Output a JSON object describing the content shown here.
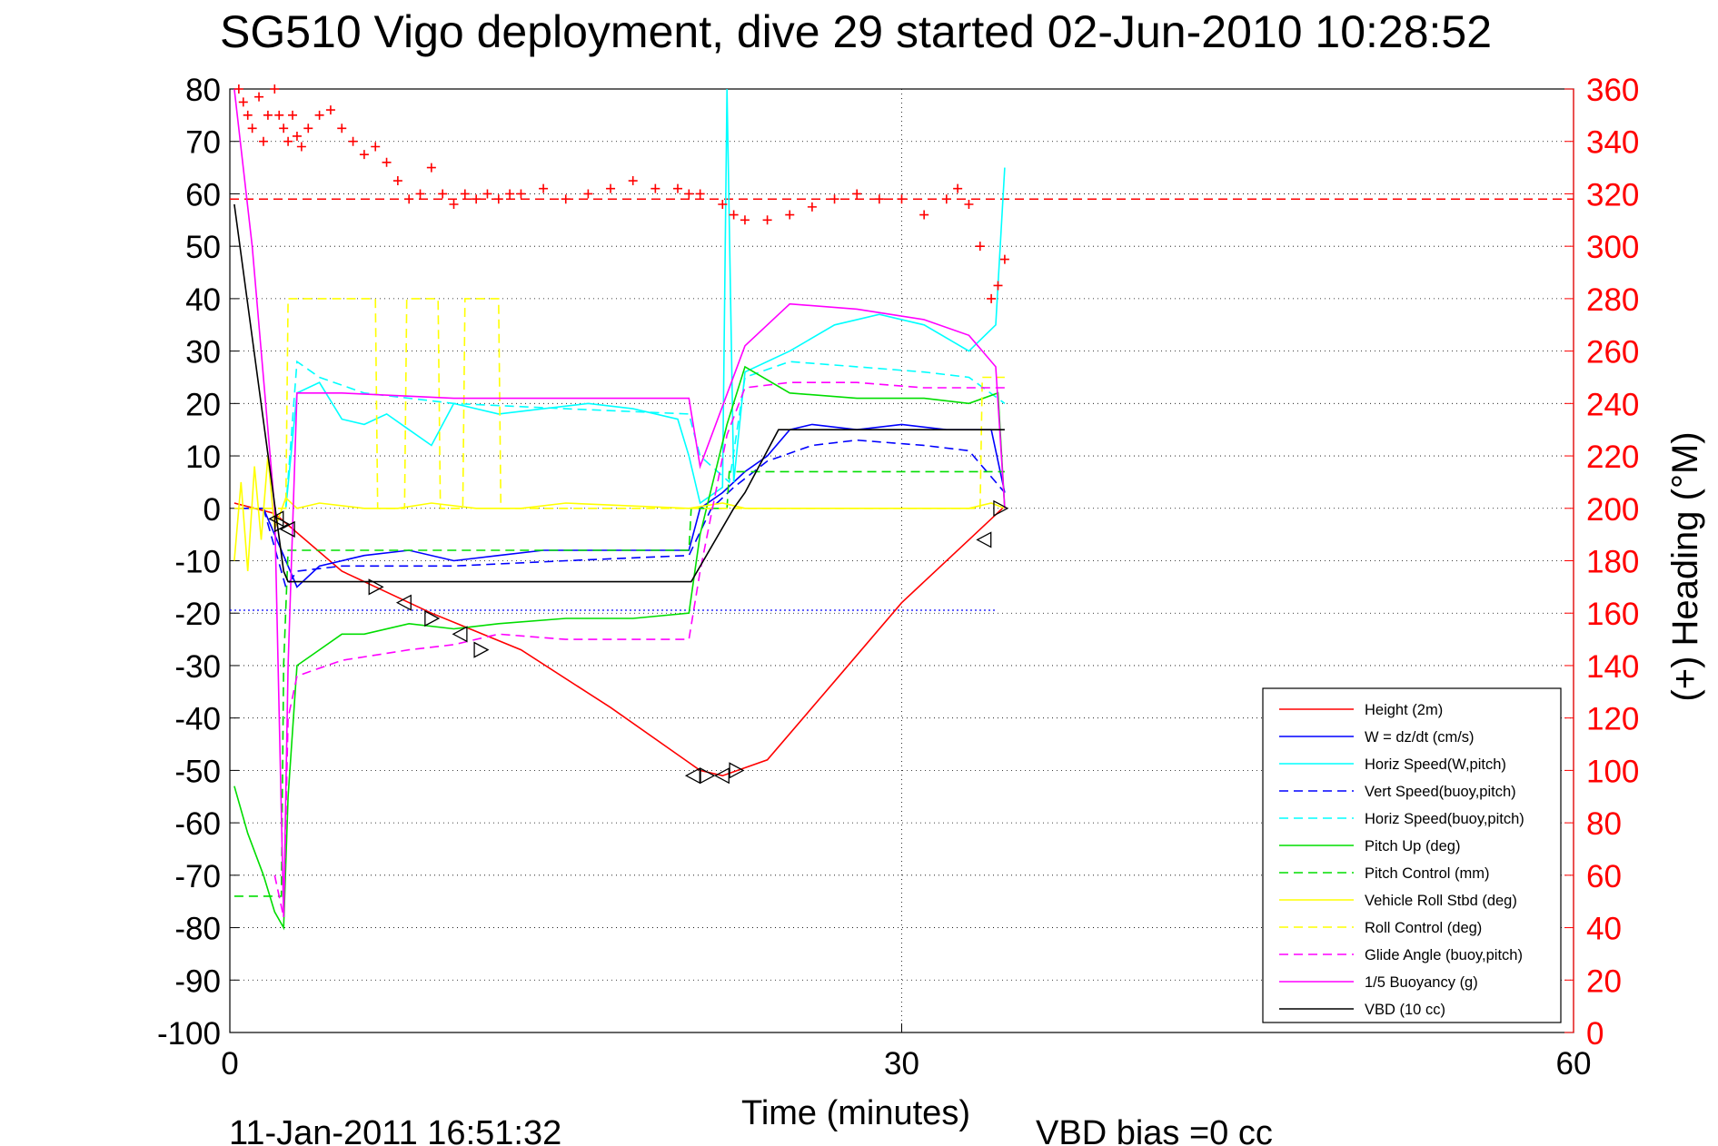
{
  "title": "SG510 Vigo deployment, dive 29 started 02-Jun-2010 10:28:52",
  "footer_date": "11-Jan-2011 16:51:32",
  "vbd_bias": "VBD bias =0 cc",
  "colors": {
    "height": "#ff0000",
    "w": "#0000ff",
    "horiz_w_pitch": "#00ffff",
    "pitch": "#00dd00",
    "roll": "#ffff00",
    "glide": "#ff00ff",
    "vbd": "#000000",
    "heading": "#ff0000",
    "grid": "#000000"
  },
  "chart_data": {
    "type": "line",
    "title": "SG510 Vigo deployment, dive 29 started 02-Jun-2010 10:28:52",
    "xlabel": "Time (minutes)",
    "ylabel": "",
    "y2label": "(+) Heading (°M)",
    "xlim": [
      0,
      60
    ],
    "ylim": [
      -100,
      80
    ],
    "y2lim": [
      0,
      360
    ],
    "xticks": [
      0,
      30,
      60
    ],
    "yticks": [
      80,
      70,
      60,
      50,
      40,
      30,
      20,
      10,
      0,
      -10,
      -20,
      -30,
      -40,
      -50,
      -60,
      -70,
      -80,
      -90,
      -100
    ],
    "y2ticks": [
      360,
      340,
      320,
      300,
      280,
      260,
      240,
      220,
      200,
      180,
      160,
      140,
      120,
      100,
      80,
      60,
      40,
      20,
      0
    ],
    "grid": true,
    "legend_position": "bottom-right",
    "series": [
      {
        "name": "Height (2m)",
        "color": "#ff0000",
        "dash": "solid",
        "x": [
          0.2,
          2,
          5,
          9,
          13,
          17,
          21,
          22,
          24,
          27,
          30,
          33,
          34.5
        ],
        "y": [
          1,
          -1,
          -12,
          -20,
          -27,
          -38,
          -50,
          -51,
          -48,
          -33,
          -18,
          -6,
          0
        ]
      },
      {
        "name": "W = dz/dt (cm/s)",
        "color": "#0000ff",
        "dash": "solid",
        "x": [
          0.2,
          1.5,
          2.5,
          3,
          4,
          6,
          8,
          10,
          12,
          14,
          16,
          18,
          20.5,
          21,
          22,
          23,
          24,
          25,
          26,
          28,
          30,
          32,
          34,
          34.6
        ],
        "y": [
          0,
          0,
          -10,
          -15,
          -11,
          -9,
          -8,
          -10,
          -9,
          -8,
          -8,
          -8,
          -8,
          0,
          3,
          7,
          10,
          15,
          16,
          15,
          16,
          15,
          15,
          3
        ]
      },
      {
        "name": "Horiz Speed(W,pitch)",
        "color": "#00ffff",
        "dash": "solid",
        "x": [
          2.5,
          3,
          4,
          5,
          6,
          7,
          8,
          9,
          10,
          12,
          14,
          16,
          18,
          20,
          20.5,
          21,
          22,
          22.2,
          22.5,
          23,
          25,
          27,
          29,
          31,
          33,
          34.2,
          34.6
        ],
        "y": [
          0,
          22,
          24,
          17,
          16,
          18,
          15,
          12,
          20,
          18,
          19,
          20,
          19,
          17,
          10,
          1,
          4,
          80,
          5,
          26,
          30,
          35,
          37,
          35,
          30,
          35,
          65
        ]
      },
      {
        "name": "Vert Speed(buoy,pitch)",
        "color": "#0000ff",
        "dash": "dash",
        "x": [
          1.5,
          2.5,
          3,
          5,
          10,
          15,
          20.5,
          21.5,
          22.5,
          24,
          26,
          28,
          31,
          33,
          34.6
        ],
        "y": [
          0,
          -15,
          -12,
          -11,
          -11,
          -10,
          -9,
          0,
          4,
          9,
          12,
          13,
          12,
          11,
          3
        ]
      },
      {
        "name": "Horiz Speed(buoy,pitch)",
        "color": "#00ffff",
        "dash": "dash",
        "x": [
          2.5,
          3,
          4,
          6,
          10,
          15,
          20.5,
          21,
          22.3,
          23,
          25,
          28,
          31,
          33,
          34.6
        ],
        "y": [
          0,
          28,
          25,
          22,
          20,
          19,
          18,
          10,
          5,
          25,
          28,
          27,
          26,
          25,
          20
        ]
      },
      {
        "name": "Pitch Up (deg)",
        "color": "#00dd00",
        "dash": "solid",
        "x": [
          0.2,
          0.8,
          1.5,
          2,
          2.4,
          2.6,
          3,
          4,
          5,
          6,
          8,
          10,
          12,
          15,
          18,
          20.5,
          21,
          22.2,
          23,
          25,
          28,
          31,
          33,
          34.3,
          34.6
        ],
        "y": [
          -53,
          -62,
          -70,
          -77,
          -80,
          -55,
          -30,
          -27,
          -24,
          -24,
          -22,
          -23,
          -22,
          -21,
          -21,
          -20,
          -5,
          16,
          27,
          22,
          21,
          21,
          20,
          22,
          0
        ]
      },
      {
        "name": "Pitch Control (mm)",
        "color": "#00dd00",
        "dash": "dash",
        "x": [
          0.2,
          2.3,
          2.4,
          2.6,
          20.5,
          20.6,
          22.2,
          22.3,
          34.6
        ],
        "y": [
          -74,
          -74,
          -30,
          -8,
          -8,
          0,
          0,
          7,
          7
        ]
      },
      {
        "name": "Vehicle Roll Stbd (deg)",
        "color": "#ffff00",
        "dash": "solid",
        "x": [
          0.2,
          0.5,
          0.8,
          1.1,
          1.4,
          1.7,
          2,
          2.5,
          3,
          4,
          6,
          7.5,
          9,
          11,
          13,
          15,
          20.5,
          22,
          23,
          33,
          34,
          34.6
        ],
        "y": [
          -10,
          5,
          -12,
          8,
          -6,
          10,
          -4,
          2,
          0,
          1,
          0,
          0,
          1,
          0,
          0,
          1,
          0,
          1,
          0,
          0,
          1,
          0
        ]
      },
      {
        "name": "Roll Control (deg)",
        "color": "#ffff00",
        "dash": "dash",
        "x": [
          0.2,
          2,
          2.5,
          2.6,
          6.5,
          6.6,
          7.8,
          7.9,
          9.3,
          9.4,
          10.4,
          10.5,
          11.2,
          11.3,
          12,
          12.1,
          33.5,
          33.6,
          34.6
        ],
        "y": [
          0,
          0,
          0,
          40,
          40,
          0,
          0,
          40,
          40,
          0,
          0,
          40,
          40,
          40,
          40,
          0,
          0,
          25,
          25
        ]
      },
      {
        "name": "Glide Angle (buoy,pitch)",
        "color": "#ff00ff",
        "dash": "dash",
        "x": [
          2,
          2.4,
          2.6,
          3,
          5,
          8,
          10,
          12,
          15,
          18,
          20.5,
          21,
          22.2,
          23,
          25,
          28,
          31,
          34.6
        ],
        "y": [
          -70,
          -78,
          -40,
          -32,
          -29,
          -27,
          -26,
          -24,
          -25,
          -25,
          -25,
          -12,
          14,
          23,
          24,
          24,
          23,
          23
        ]
      },
      {
        "name": "1/5 Buoyancy (g)",
        "color": "#ff00ff",
        "dash": "solid",
        "x": [
          0.2,
          1,
          2,
          2.4,
          2.6,
          3,
          5,
          10,
          20.5,
          21,
          23,
          25,
          28,
          31,
          33,
          34.2,
          34.6
        ],
        "y": [
          80,
          50,
          0,
          -78,
          -30,
          22,
          22,
          21,
          21,
          8,
          31,
          39,
          38,
          36,
          33,
          27,
          0
        ]
      },
      {
        "name": "VBD (10 cc)",
        "color": "#000000",
        "dash": "solid",
        "x": [
          0.2,
          2.4,
          2.6,
          20.5,
          20.6,
          22.5,
          23,
          24.5,
          34.6
        ],
        "y": [
          58,
          -12,
          -14,
          -14,
          -14,
          0,
          3,
          15,
          15
        ]
      }
    ],
    "heading_target": 318,
    "heading": {
      "name": "(+) Heading (°M)",
      "marker": "+",
      "color": "#ff0000",
      "x": [
        0.4,
        0.6,
        0.8,
        1,
        1.3,
        1.5,
        1.7,
        2,
        2.2,
        2.4,
        2.6,
        2.8,
        3,
        3.2,
        3.5,
        4,
        4.5,
        5,
        5.5,
        6,
        6.5,
        7,
        7.5,
        8,
        8.5,
        9,
        9.5,
        10,
        10.5,
        11,
        11.5,
        12,
        12.5,
        13,
        14,
        15,
        16,
        17,
        18,
        19,
        20,
        20.5,
        21,
        22,
        22.5,
        23,
        24,
        25,
        26,
        27,
        28,
        29,
        30,
        31,
        32,
        32.5,
        33,
        33.5,
        34,
        34.3,
        34.6
      ],
      "y": [
        360,
        355,
        350,
        345,
        357,
        340,
        350,
        360,
        350,
        345,
        340,
        350,
        342,
        338,
        345,
        350,
        352,
        345,
        340,
        335,
        338,
        332,
        325,
        318,
        320,
        330,
        320,
        316,
        320,
        318,
        320,
        318,
        320,
        320,
        322,
        318,
        320,
        322,
        325,
        322,
        322,
        320,
        320,
        316,
        312,
        310,
        310,
        312,
        315,
        318,
        320,
        318,
        318,
        312,
        318,
        322,
        316,
        300,
        280,
        285,
        295
      ]
    },
    "markers": {
      "x": [
        2.1,
        2.3,
        2.6,
        6.5,
        7.8,
        9,
        10.3,
        11.2,
        20.7,
        21.3,
        22,
        22.6,
        33.7,
        34.4
      ],
      "y": [
        -2,
        -3,
        -4,
        -15,
        -18,
        -21,
        -24,
        -27,
        -51,
        -51,
        -51,
        -50,
        -6,
        0
      ]
    }
  }
}
